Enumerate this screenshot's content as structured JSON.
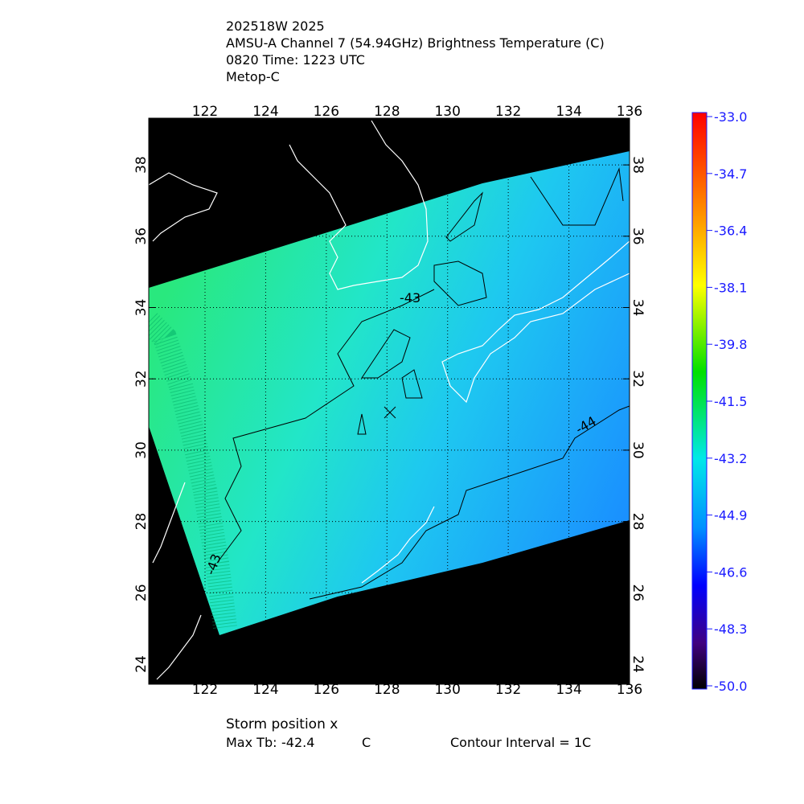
{
  "header": {
    "lines": [
      "202518W 2025",
      "AMSU-A Channel 7 (54.94GHz) Brightness Temperature (C)",
      "0820 Time: 1223 UTC",
      "Metop-C"
    ]
  },
  "map": {
    "lon_labels": [
      "122",
      "124",
      "126",
      "128",
      "130",
      "132",
      "134",
      "136"
    ],
    "lat_labels": [
      "24",
      "26",
      "28",
      "30",
      "32",
      "34",
      "36",
      "38"
    ],
    "contour_labels": [
      "-43",
      "-44",
      "-43"
    ]
  },
  "colorbar": {
    "labels": [
      "-33.0",
      "-34.7",
      "-36.4",
      "-38.1",
      "-39.8",
      "-41.5",
      "-43.2",
      "-44.9",
      "-46.6",
      "-48.3",
      "-50.0"
    ]
  },
  "footer": {
    "storm_position": "Storm position x",
    "max_tb_label": "Max Tb:",
    "max_tb_value": "-42.4",
    "max_tb_unit": "C",
    "contour_interval": "Contour Interval = 1C"
  }
}
